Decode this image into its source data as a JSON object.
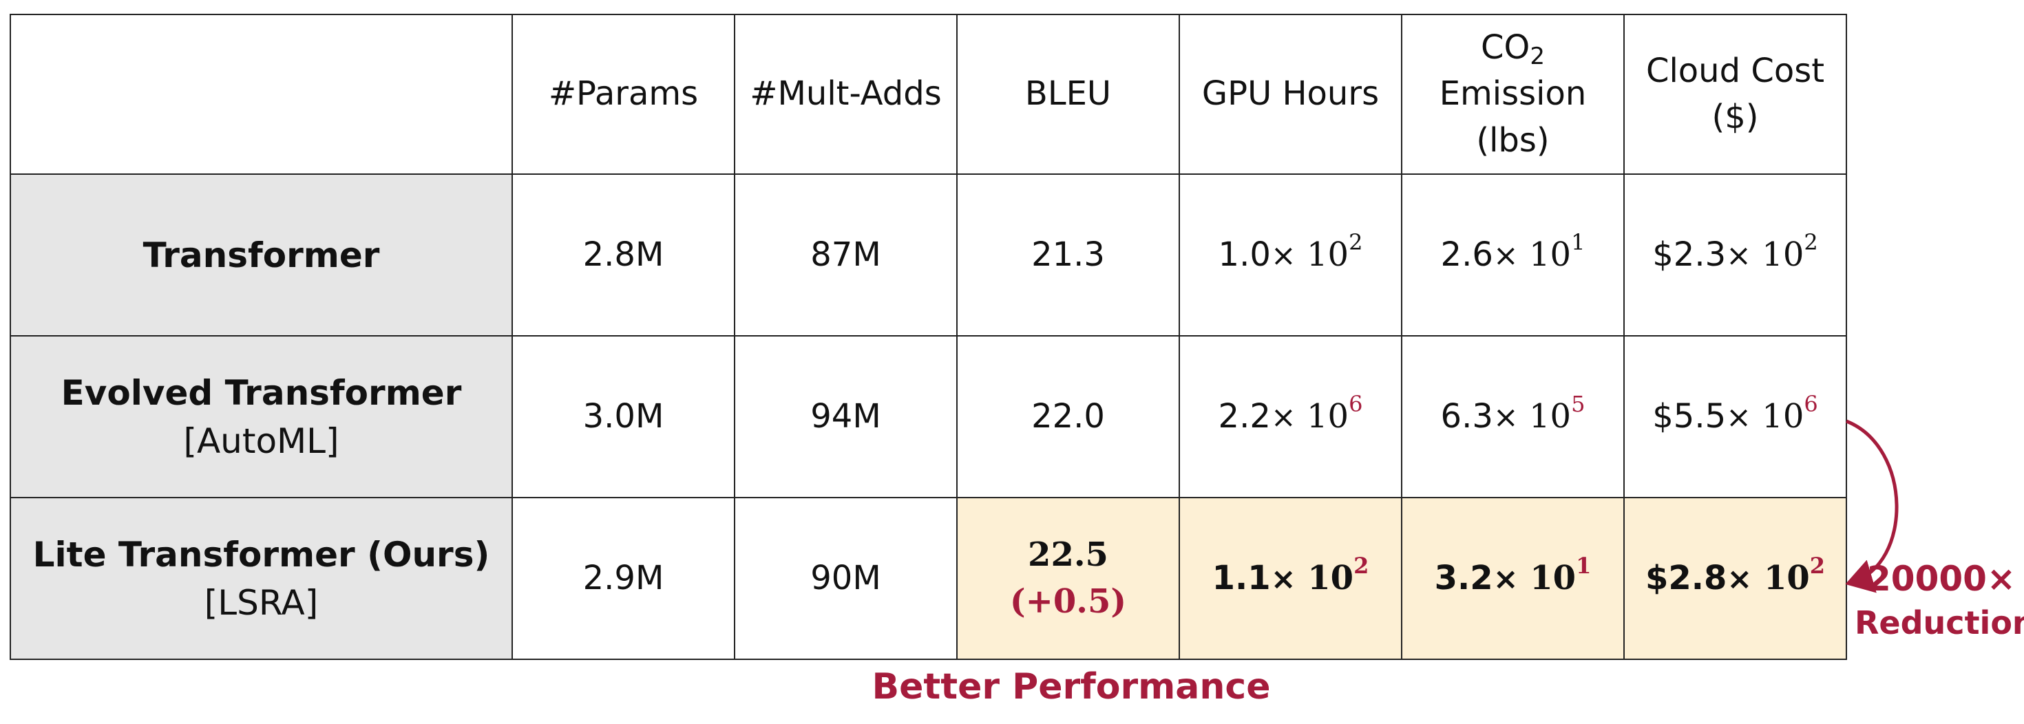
{
  "chart_data": {
    "type": "table",
    "columns": [
      "#Params",
      "#Mult-Adds",
      "BLEU",
      "GPU Hours",
      "Emission",
      "Cloud Cost"
    ],
    "column_headers": {
      "params": "#Params",
      "mult_adds": "#Mult-Adds",
      "bleu": "BLEU",
      "gpu_hours": "GPU Hours",
      "co2_line1": "CO",
      "co2_sub": "2",
      "co2_line2": "Emission",
      "co2_line3": "(lbs)",
      "cost_line1": "Cloud Cost",
      "cost_line2": "($)"
    },
    "rows": [
      {
        "name": "Transformer",
        "sub": "",
        "params": "2.8M",
        "mult_adds": "87M",
        "bleu": "21.3",
        "bleu_delta": "",
        "gpu_hours": {
          "mantissa": "1.0",
          "times": "×",
          "base": "10",
          "exp": "2"
        },
        "co2": {
          "mantissa": "2.6",
          "times": "×",
          "base": "10",
          "exp": "1"
        },
        "cost": {
          "mantissa": "$2.3",
          "times": "×",
          "base": "10",
          "exp": "2"
        }
      },
      {
        "name": "Evolved Transformer",
        "sub": "[AutoML]",
        "params": "3.0M",
        "mult_adds": "94M",
        "bleu": "22.0",
        "bleu_delta": "",
        "gpu_hours": {
          "mantissa": "2.2",
          "times": "×",
          "base": "10",
          "exp": "6"
        },
        "co2": {
          "mantissa": "6.3",
          "times": "×",
          "base": "10",
          "exp": "5"
        },
        "cost": {
          "mantissa": "$5.5",
          "times": "×",
          "base": "10",
          "exp": "6"
        }
      },
      {
        "name": "Lite Transformer (Ours)",
        "sub": "[LSRA]",
        "params": "2.9M",
        "mult_adds": "90M",
        "bleu": "22.5",
        "bleu_delta": "(+0.5)",
        "gpu_hours": {
          "mantissa": "1.1",
          "times": "×",
          "base": "10",
          "exp": "2"
        },
        "co2": {
          "mantissa": "3.2",
          "times": "×",
          "base": "10",
          "exp": "1"
        },
        "cost": {
          "mantissa": "$2.8",
          "times": "×",
          "base": "10",
          "exp": "2"
        }
      }
    ],
    "annotations": {
      "better_performance": "Better Performance",
      "reduction_factor": "20000×",
      "reduction_label": "Reduction"
    },
    "colors": {
      "accent": "#a51c3c",
      "row_label_bg": "#e6e6e6",
      "highlight_bg": "#fdf0d5"
    }
  }
}
